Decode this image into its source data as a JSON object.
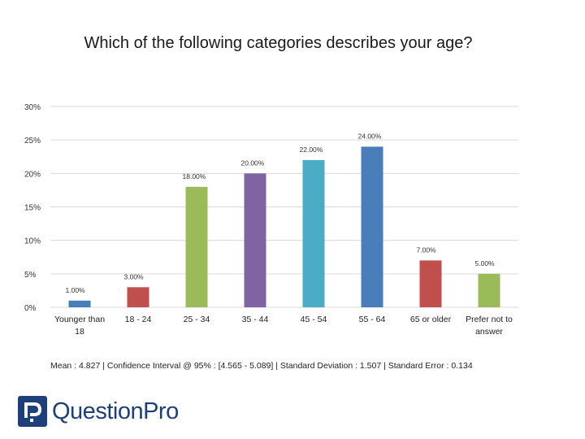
{
  "chart_data": {
    "type": "bar",
    "title": "Which of the following categories describes your age?",
    "categories": [
      "Younger than 18",
      "18 - 24",
      "25 - 34",
      "35 - 44",
      "45 - 54",
      "55 - 64",
      "65 or older",
      "Prefer not to answer"
    ],
    "category_lines": [
      [
        "Younger than",
        "18"
      ],
      [
        "18 - 24"
      ],
      [
        "25 - 34"
      ],
      [
        "35 - 44"
      ],
      [
        "45 - 54"
      ],
      [
        "55 - 64"
      ],
      [
        "65 or older"
      ],
      [
        "Prefer not to",
        "answer"
      ]
    ],
    "values": [
      1,
      3,
      18,
      20,
      22,
      24,
      7,
      5
    ],
    "data_labels": [
      "1.00%",
      "3.00%",
      "18.00%",
      "20.00%",
      "22.00%",
      "24.00%",
      "7.00%",
      "5.00%"
    ],
    "colors": [
      "#4a7ebb",
      "#c0504d",
      "#9bbb59",
      "#8064a2",
      "#4bacc6",
      "#4a7ebb",
      "#c0504d",
      "#9bbb59"
    ],
    "ylim": [
      0,
      30
    ],
    "yticks": [
      0,
      5,
      10,
      15,
      20,
      25,
      30
    ],
    "ytick_labels": [
      "0%",
      "5%",
      "10%",
      "15%",
      "20%",
      "25%",
      "30%"
    ],
    "grid": true,
    "xlabel": "",
    "ylabel": ""
  },
  "stats_line": "Mean : 4.827  |  Confidence Interval @ 95% : [4.565 - 5.089]  |  Standard Deviation : 1.507  |  Standard Error : 0.134",
  "logo": {
    "text": "QuestionPro",
    "icon": "questionpro-logo-icon",
    "brand_color": "#1d3f7a"
  }
}
